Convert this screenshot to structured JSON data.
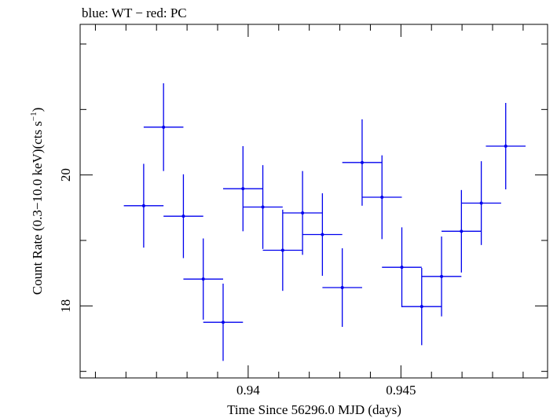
{
  "chart_data": {
    "type": "scatter",
    "title": "blue: WT − red: PC",
    "xlabel": "Time Since 56296.0 MJD (days)",
    "ylabel_parts": {
      "pre": "Count Rate (0.3−10.0 keV)(cts s",
      "sup": "−1",
      "post": ")"
    },
    "xlim": [
      0.9345,
      0.9498
    ],
    "ylim": [
      16.9,
      22.3
    ],
    "x_major_ticks": [
      0.94,
      0.945
    ],
    "x_tick_labels": [
      "0.94",
      "0.945"
    ],
    "y_major_ticks": [
      18,
      20
    ],
    "y_tick_labels": [
      "18",
      "20"
    ],
    "grid": false,
    "series": [
      {
        "color": "#0000ee",
        "points": [
          {
            "x": 0.93658,
            "xerr": 0.00065,
            "y": 19.53,
            "yerr": 0.64
          },
          {
            "x": 0.93723,
            "xerr": 0.00065,
            "y": 20.73,
            "yerr": 0.67
          },
          {
            "x": 0.93788,
            "xerr": 0.00065,
            "y": 19.37,
            "yerr": 0.64
          },
          {
            "x": 0.93853,
            "xerr": 0.00065,
            "y": 18.41,
            "yerr": 0.62
          },
          {
            "x": 0.93918,
            "xerr": 0.00065,
            "y": 17.75,
            "yerr": 0.59
          },
          {
            "x": 0.93983,
            "xerr": 0.00065,
            "y": 19.79,
            "yerr": 0.65
          },
          {
            "x": 0.94048,
            "xerr": 0.00065,
            "y": 19.51,
            "yerr": 0.64
          },
          {
            "x": 0.94113,
            "xerr": 0.00065,
            "y": 18.85,
            "yerr": 0.62
          },
          {
            "x": 0.94178,
            "xerr": 0.00065,
            "y": 19.42,
            "yerr": 0.64
          },
          {
            "x": 0.94243,
            "xerr": 0.00065,
            "y": 19.09,
            "yerr": 0.63
          },
          {
            "x": 0.94308,
            "xerr": 0.00065,
            "y": 18.28,
            "yerr": 0.6
          },
          {
            "x": 0.94373,
            "xerr": 0.00065,
            "y": 20.19,
            "yerr": 0.66
          },
          {
            "x": 0.94438,
            "xerr": 0.00065,
            "y": 19.66,
            "yerr": 0.64
          },
          {
            "x": 0.94503,
            "xerr": 0.00065,
            "y": 18.59,
            "yerr": 0.61
          },
          {
            "x": 0.94568,
            "xerr": 0.00065,
            "y": 17.99,
            "yerr": 0.59
          },
          {
            "x": 0.94633,
            "xerr": 0.00065,
            "y": 18.45,
            "yerr": 0.61
          },
          {
            "x": 0.94698,
            "xerr": 0.00065,
            "y": 19.14,
            "yerr": 0.63
          },
          {
            "x": 0.94763,
            "xerr": 0.00065,
            "y": 19.57,
            "yerr": 0.64
          },
          {
            "x": 0.94843,
            "xerr": 0.00065,
            "y": 20.44,
            "yerr": 0.66
          }
        ]
      }
    ]
  }
}
